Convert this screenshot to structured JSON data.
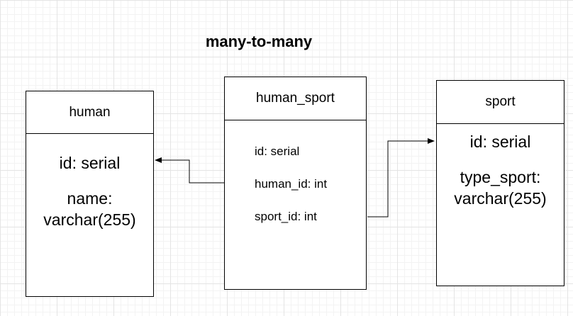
{
  "title": "many-to-many",
  "entities": {
    "human": {
      "name": "human",
      "fields": [
        "id: serial",
        "name:",
        "varchar(255)"
      ]
    },
    "human_sport": {
      "name": "human_sport",
      "fields": [
        "id: serial",
        "human_id: int",
        "sport_id: int"
      ]
    },
    "sport": {
      "name": "sport",
      "fields": [
        "id: serial",
        "type_sport:",
        "varchar(255)"
      ]
    }
  },
  "relations": [
    {
      "from": "human_sport.human_id",
      "to": "human.id"
    },
    {
      "from": "human_sport.sport_id",
      "to": "sport.id"
    }
  ]
}
